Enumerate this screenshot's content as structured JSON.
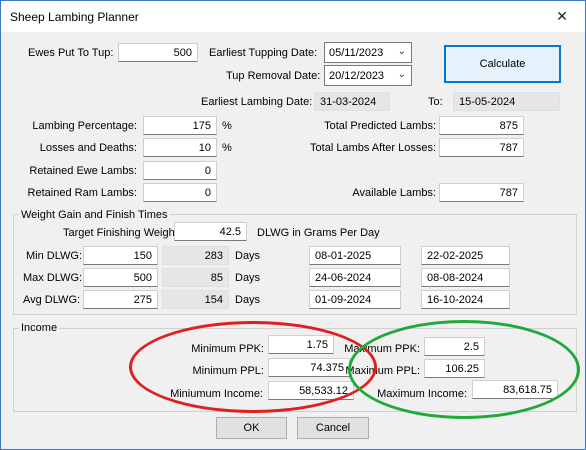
{
  "window": {
    "title": "Sheep Lambing Planner",
    "close_glyph": "✕"
  },
  "tupping": {
    "ewes_label": "Ewes Put To Tup:",
    "ewes_value": "500",
    "earliest_label": "Earliest Tupping Date:",
    "earliest_value": "05/11/2023",
    "removal_label": "Tup Removal Date:",
    "removal_value": "20/12/2023",
    "calculate_label": "Calculate",
    "lambing_label": "Earliest Lambing Date:",
    "lambing_value": "31-03-2024",
    "to_label": "To:",
    "to_value": "15-05-2024"
  },
  "lambs": {
    "percentage_label": "Lambing Percentage:",
    "percentage_value": "175",
    "percentage_unit": "%",
    "losses_label": "Losses and Deaths:",
    "losses_value": "10",
    "losses_unit": "%",
    "ewe_label": "Retained Ewe Lambs:",
    "ewe_value": "0",
    "ram_label": "Retained Ram Lambs:",
    "ram_value": "0",
    "predicted_label": "Total Predicted Lambs:",
    "predicted_value": "875",
    "after_losses_label": "Total Lambs After Losses:",
    "after_losses_value": "787",
    "available_label": "Available Lambs:",
    "available_value": "787"
  },
  "weight": {
    "group_title": "Weight Gain and Finish Times",
    "target_label": "Target Finishing Weight:",
    "target_value": "42.5",
    "target_unit": "DLWG in Grams Per Day",
    "days_label": "Days",
    "rows": [
      {
        "label": "Min DLWG:",
        "dlwg": "150",
        "days": "283",
        "date1": "08-01-2025",
        "date2": "22-02-2025"
      },
      {
        "label": "Max DLWG:",
        "dlwg": "500",
        "days": "85",
        "date1": "24-06-2024",
        "date2": "08-08-2024"
      },
      {
        "label": "Avg DLWG:",
        "dlwg": "275",
        "days": "154",
        "date1": "01-09-2024",
        "date2": "16-10-2024"
      }
    ]
  },
  "income": {
    "group_title": "Income",
    "min_ppk_label": "Minimum PPK:",
    "min_ppk_value": "1.75",
    "min_ppl_label": "Minimum PPL:",
    "min_ppl_value": "74.375",
    "min_income_label": "Miniumum Income:",
    "min_income_value": "58,533.12",
    "max_ppk_label": "Maximum PPK:",
    "max_ppk_value": "2.5",
    "max_ppl_label": "Maximum PPL:",
    "max_ppl_value": "106.25",
    "max_income_label": "Maximum Income:",
    "max_income_value": "83,618.75"
  },
  "buttons": {
    "ok_label": "OK",
    "cancel_label": "Cancel"
  },
  "annotations": {
    "red_color": "#e02020",
    "green_color": "#1faa3a"
  }
}
